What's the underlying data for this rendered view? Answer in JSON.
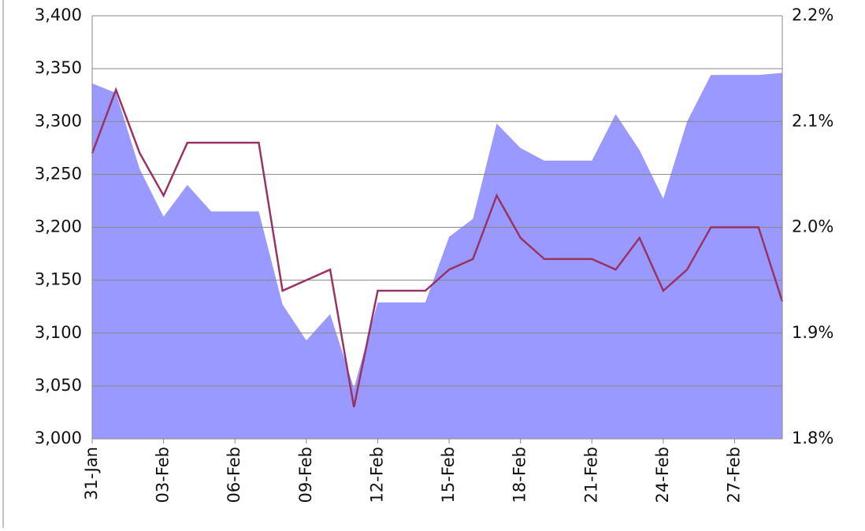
{
  "chart_data": {
    "type": "area-line",
    "categories": [
      "31-Jan",
      null,
      null,
      "03-Feb",
      null,
      null,
      "06-Feb",
      null,
      null,
      "09-Feb",
      null,
      null,
      "12-Feb",
      null,
      null,
      "15-Feb",
      null,
      null,
      "18-Feb",
      null,
      null,
      "21-Feb",
      null,
      null,
      "24-Feb",
      null,
      null,
      "27-Feb",
      null,
      null
    ],
    "series": [
      {
        "kind": "area",
        "color": "#9999ff",
        "values": [
          3336,
          3327,
          3255,
          3210,
          3240,
          3215,
          3215,
          3215,
          3127,
          3093,
          3118,
          3048,
          3129,
          3129,
          3129,
          3191,
          3208,
          3298,
          3275,
          3263,
          3263,
          3263,
          3307,
          3273,
          3227,
          3300,
          3344,
          3344,
          3344,
          3346
        ]
      },
      {
        "kind": "line",
        "axis": "y2",
        "color": "#993366",
        "values": [
          2.07,
          2.13,
          2.07,
          2.03,
          2.08,
          2.08,
          2.08,
          2.08,
          1.94,
          1.95,
          1.96,
          1.83,
          1.94,
          1.94,
          1.94,
          1.96,
          1.97,
          2.03,
          1.99,
          1.97,
          1.97,
          1.97,
          1.96,
          1.99,
          1.94,
          1.96,
          2.0,
          2.0,
          2.0,
          1.93
        ]
      }
    ],
    "ylim": [
      3000,
      3400
    ],
    "yticks": [
      {
        "value": 3000,
        "label": "3,000"
      },
      {
        "value": 3050,
        "label": "3,050"
      },
      {
        "value": 3100,
        "label": "3,100"
      },
      {
        "value": 3150,
        "label": "3,150"
      },
      {
        "value": 3200,
        "label": "3,200"
      },
      {
        "value": 3250,
        "label": "3,250"
      },
      {
        "value": 3300,
        "label": "3,300"
      },
      {
        "value": 3350,
        "label": "3,350"
      },
      {
        "value": 3400,
        "label": "3,400"
      }
    ],
    "y2lim": [
      1.8,
      2.2
    ],
    "y2ticks": [
      {
        "value": 1.8,
        "label": "1.8%"
      },
      {
        "value": 1.9,
        "label": "1.9%"
      },
      {
        "value": 2.0,
        "label": "2.0%"
      },
      {
        "value": 2.1,
        "label": "2.1%"
      },
      {
        "value": 2.2,
        "label": "2.2%"
      }
    ],
    "grid": true
  }
}
